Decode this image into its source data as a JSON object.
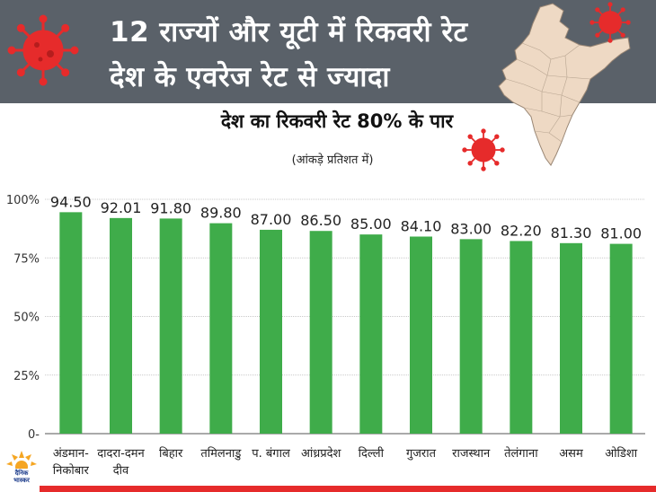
{
  "header": {
    "title_line1": "12 राज्यों और यूटी में रिकवरी रेट",
    "title_line2": "देश के एवरेज रेट से ज्यादा"
  },
  "subtitle": "देश का रिकवरी रेट 80% के पार",
  "note": "(आंकड़े प्रतिशत में)",
  "logo": {
    "text_line1": "दैनिक",
    "text_line2": "भास्कर"
  },
  "colors": {
    "bar": "#3fac4a",
    "header": "#5a6169",
    "virus": "#e62b2b",
    "map": "#eed9c4"
  },
  "chart_data": {
    "type": "bar",
    "categories": [
      [
        "अंडमान-",
        "निकोबार"
      ],
      [
        "दादरा-दमन",
        "दीव"
      ],
      [
        "बिहार"
      ],
      [
        "तमिलनाडु"
      ],
      [
        "प. बंगाल"
      ],
      [
        "आंध्रप्रदेश"
      ],
      [
        "दिल्ली"
      ],
      [
        "गुजरात"
      ],
      [
        "राजस्थान"
      ],
      [
        "तेलंगाना"
      ],
      [
        "असम"
      ],
      [
        "ओडिशा"
      ]
    ],
    "values": [
      94.5,
      92.01,
      91.8,
      89.8,
      87.0,
      86.5,
      85.0,
      84.1,
      83.0,
      82.2,
      81.3,
      81.0
    ],
    "value_labels": [
      "94.50",
      "92.01",
      "91.80",
      "89.80",
      "87.00",
      "86.50",
      "85.00",
      "84.10",
      "83.00",
      "82.20",
      "81.30",
      "81.00"
    ],
    "yticks": [
      0,
      25,
      50,
      75,
      100
    ],
    "ytick_labels": [
      "0-",
      "25%",
      "50%",
      "75%",
      "100%"
    ],
    "ylim": [
      0,
      100
    ],
    "grid": true
  }
}
